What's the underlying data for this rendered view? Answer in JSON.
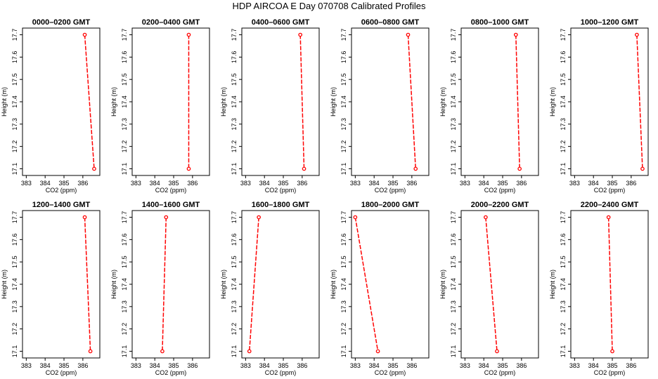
{
  "title": "HDP AIRCOA E  Day 070708  Calibrated Profiles",
  "colors": {
    "series": "#ff0000",
    "axis": "#000000"
  },
  "chart_data": [
    {
      "type": "line",
      "title": "0000–0200 GMT",
      "xlabel": "CO2 (ppm)",
      "ylabel": "Height (m)",
      "xlim": [
        382.8,
        386.9
      ],
      "ylim": [
        17.07,
        17.73
      ],
      "xticks": [
        "383",
        "384",
        "385",
        "386"
      ],
      "yticks": [
        "17.1",
        "17.2",
        "17.3",
        "17.4",
        "17.5",
        "17.6",
        "17.7"
      ],
      "points": [
        {
          "x": 386.1,
          "y": 17.7
        },
        {
          "x": 386.6,
          "y": 17.1
        }
      ]
    },
    {
      "type": "line",
      "title": "0200–0400 GMT",
      "xlabel": "CO2 (ppm)",
      "ylabel": "Height (m)",
      "xlim": [
        382.8,
        386.9
      ],
      "ylim": [
        17.07,
        17.73
      ],
      "xticks": [
        "383",
        "384",
        "385",
        "386"
      ],
      "yticks": [
        "17.1",
        "17.2",
        "17.3",
        "17.4",
        "17.5",
        "17.6",
        "17.7"
      ],
      "points": [
        {
          "x": 385.8,
          "y": 17.7
        },
        {
          "x": 385.8,
          "y": 17.1
        }
      ]
    },
    {
      "type": "line",
      "title": "0400–0600 GMT",
      "xlabel": "CO2 (ppm)",
      "ylabel": "Height (m)",
      "xlim": [
        382.8,
        386.9
      ],
      "ylim": [
        17.07,
        17.73
      ],
      "xticks": [
        "383",
        "384",
        "385",
        "386"
      ],
      "yticks": [
        "17.1",
        "17.2",
        "17.3",
        "17.4",
        "17.5",
        "17.6",
        "17.7"
      ],
      "points": [
        {
          "x": 385.9,
          "y": 17.7
        },
        {
          "x": 386.1,
          "y": 17.1
        }
      ]
    },
    {
      "type": "line",
      "title": "0600–0800 GMT",
      "xlabel": "CO2 (ppm)",
      "ylabel": "Height (m)",
      "xlim": [
        382.8,
        386.9
      ],
      "ylim": [
        17.07,
        17.73
      ],
      "xticks": [
        "383",
        "384",
        "385",
        "386"
      ],
      "yticks": [
        "17.1",
        "17.2",
        "17.3",
        "17.4",
        "17.5",
        "17.6",
        "17.7"
      ],
      "points": [
        {
          "x": 385.8,
          "y": 17.7
        },
        {
          "x": 386.2,
          "y": 17.1
        }
      ]
    },
    {
      "type": "line",
      "title": "0800–1000 GMT",
      "xlabel": "CO2 (ppm)",
      "ylabel": "Height (m)",
      "xlim": [
        382.8,
        386.9
      ],
      "ylim": [
        17.07,
        17.73
      ],
      "xticks": [
        "383",
        "384",
        "385",
        "386"
      ],
      "yticks": [
        "17.1",
        "17.2",
        "17.3",
        "17.4",
        "17.5",
        "17.6",
        "17.7"
      ],
      "points": [
        {
          "x": 385.7,
          "y": 17.7
        },
        {
          "x": 385.9,
          "y": 17.1
        }
      ]
    },
    {
      "type": "line",
      "title": "1000–1200 GMT",
      "xlabel": "CO2 (ppm)",
      "ylabel": "Height (m)",
      "xlim": [
        382.8,
        386.9
      ],
      "ylim": [
        17.07,
        17.73
      ],
      "xticks": [
        "383",
        "384",
        "385",
        "386"
      ],
      "yticks": [
        "17.1",
        "17.2",
        "17.3",
        "17.4",
        "17.5",
        "17.6",
        "17.7"
      ],
      "points": [
        {
          "x": 386.3,
          "y": 17.7
        },
        {
          "x": 386.6,
          "y": 17.1
        }
      ]
    },
    {
      "type": "line",
      "title": "1200–1400 GMT",
      "xlabel": "CO2 (ppm)",
      "ylabel": "Height (m)",
      "xlim": [
        382.8,
        386.9
      ],
      "ylim": [
        17.07,
        17.73
      ],
      "xticks": [
        "383",
        "384",
        "385",
        "386"
      ],
      "yticks": [
        "17.1",
        "17.2",
        "17.3",
        "17.4",
        "17.5",
        "17.6",
        "17.7"
      ],
      "points": [
        {
          "x": 386.1,
          "y": 17.7
        },
        {
          "x": 386.4,
          "y": 17.1
        }
      ]
    },
    {
      "type": "line",
      "title": "1400–1600 GMT",
      "xlabel": "CO2 (ppm)",
      "ylabel": "Height (m)",
      "xlim": [
        382.8,
        386.9
      ],
      "ylim": [
        17.07,
        17.73
      ],
      "xticks": [
        "383",
        "384",
        "385",
        "386"
      ],
      "yticks": [
        "17.1",
        "17.2",
        "17.3",
        "17.4",
        "17.5",
        "17.6",
        "17.7"
      ],
      "points": [
        {
          "x": 384.6,
          "y": 17.7
        },
        {
          "x": 384.4,
          "y": 17.1
        }
      ]
    },
    {
      "type": "line",
      "title": "1600–1800 GMT",
      "xlabel": "CO2 (ppm)",
      "ylabel": "Height (m)",
      "xlim": [
        382.8,
        386.9
      ],
      "ylim": [
        17.07,
        17.73
      ],
      "xticks": [
        "383",
        "384",
        "385",
        "386"
      ],
      "yticks": [
        "17.1",
        "17.2",
        "17.3",
        "17.4",
        "17.5",
        "17.6",
        "17.7"
      ],
      "points": [
        {
          "x": 383.7,
          "y": 17.7
        },
        {
          "x": 383.2,
          "y": 17.1
        }
      ]
    },
    {
      "type": "line",
      "title": "1800–2000 GMT",
      "xlabel": "CO2 (ppm)",
      "ylabel": "Height (m)",
      "xlim": [
        382.8,
        386.9
      ],
      "ylim": [
        17.07,
        17.73
      ],
      "xticks": [
        "383",
        "384",
        "385",
        "386"
      ],
      "yticks": [
        "17.1",
        "17.2",
        "17.3",
        "17.4",
        "17.5",
        "17.6",
        "17.7"
      ],
      "points": [
        {
          "x": 383.0,
          "y": 17.7
        },
        {
          "x": 384.2,
          "y": 17.1
        }
      ]
    },
    {
      "type": "line",
      "title": "2000–2200 GMT",
      "xlabel": "CO2 (ppm)",
      "ylabel": "Height (m)",
      "xlim": [
        382.8,
        386.9
      ],
      "ylim": [
        17.07,
        17.73
      ],
      "xticks": [
        "383",
        "384",
        "385",
        "386"
      ],
      "yticks": [
        "17.1",
        "17.2",
        "17.3",
        "17.4",
        "17.5",
        "17.6",
        "17.7"
      ],
      "points": [
        {
          "x": 384.1,
          "y": 17.7
        },
        {
          "x": 384.7,
          "y": 17.1
        }
      ]
    },
    {
      "type": "line",
      "title": "2200–2400 GMT",
      "xlabel": "CO2 (ppm)",
      "ylabel": "Height (m)",
      "xlim": [
        382.8,
        386.9
      ],
      "ylim": [
        17.07,
        17.73
      ],
      "xticks": [
        "383",
        "384",
        "385",
        "386"
      ],
      "yticks": [
        "17.1",
        "17.2",
        "17.3",
        "17.4",
        "17.5",
        "17.6",
        "17.7"
      ],
      "points": [
        {
          "x": 384.8,
          "y": 17.7
        },
        {
          "x": 385.0,
          "y": 17.1
        }
      ]
    }
  ]
}
